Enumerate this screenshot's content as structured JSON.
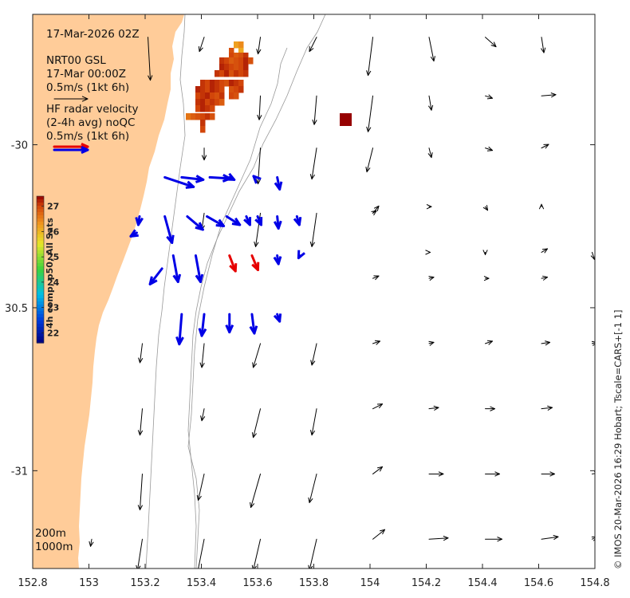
{
  "header": {
    "timestamp": "17-Mar-2026 02Z",
    "model_line1": "NRT00 GSL",
    "model_line2": "17-Mar 00:00Z",
    "model_scale": "0.5m/s (1kt 6h)",
    "radar_line1": "HF radar velocity",
    "radar_line2": "(2-4h avg) noQC",
    "radar_scale": "0.5m/s (1kt 6h)"
  },
  "depth_legend": {
    "contour_1": "200m",
    "contour_2": "1000m"
  },
  "credit": "© IMOS 20-Mar-2026 16:29 Hobart; Tscale=CARS+[-1 1]",
  "colorbar": {
    "label": "4h comp, p50, All Sats",
    "ticks": [
      "22",
      "23",
      "24",
      "25",
      "26",
      "27"
    ],
    "range": [
      21.6,
      27.4
    ]
  },
  "colors": {
    "land": "#ffcc99",
    "radar_arrows": "#0000e6",
    "radar_highlight": "#e60000",
    "model_arrows": "#000000",
    "bathymetry": "#999999"
  },
  "axes": {
    "x_ticks": [
      "152.8",
      "153",
      "153.2",
      "153.4",
      "153.6",
      "153.8",
      "154",
      "154.2",
      "154.4",
      "154.6",
      "154.8"
    ],
    "y_ticks": [
      "-30",
      "30.5",
      "-31"
    ],
    "xlim": [
      152.8,
      154.8
    ],
    "ylim": [
      -31.3,
      -29.6
    ]
  },
  "model_arrows": [
    {
      "lon": 153.21,
      "lat": -29.67,
      "u": 0.02,
      "v": -0.36
    },
    {
      "lon": 153.41,
      "lat": -29.67,
      "u": -0.04,
      "v": -0.12
    },
    {
      "lon": 153.61,
      "lat": -29.67,
      "u": -0.02,
      "v": -0.14
    },
    {
      "lon": 153.81,
      "lat": -29.67,
      "u": -0.06,
      "v": -0.12
    },
    {
      "lon": 154.01,
      "lat": -29.67,
      "u": -0.04,
      "v": -0.32
    },
    {
      "lon": 154.21,
      "lat": -29.67,
      "u": 0.04,
      "v": -0.2
    },
    {
      "lon": 154.41,
      "lat": -29.67,
      "u": 0.09,
      "v": -0.08
    },
    {
      "lon": 154.61,
      "lat": -29.67,
      "u": 0.02,
      "v": -0.13
    },
    {
      "lon": 153.61,
      "lat": -29.85,
      "u": -0.01,
      "v": -0.2
    },
    {
      "lon": 153.81,
      "lat": -29.85,
      "u": -0.02,
      "v": -0.24
    },
    {
      "lon": 154.01,
      "lat": -29.85,
      "u": -0.04,
      "v": -0.3
    },
    {
      "lon": 154.21,
      "lat": -29.85,
      "u": 0.02,
      "v": -0.12
    },
    {
      "lon": 154.41,
      "lat": -29.85,
      "u": 0.06,
      "v": -0.02
    },
    {
      "lon": 154.61,
      "lat": -29.85,
      "u": 0.12,
      "v": 0.01
    },
    {
      "lon": 153.41,
      "lat": -30.01,
      "u": 0.0,
      "v": -0.1
    },
    {
      "lon": 153.61,
      "lat": -30.01,
      "u": -0.02,
      "v": -0.3
    },
    {
      "lon": 153.81,
      "lat": -30.01,
      "u": -0.04,
      "v": -0.26
    },
    {
      "lon": 154.01,
      "lat": -30.01,
      "u": -0.05,
      "v": -0.2
    },
    {
      "lon": 154.21,
      "lat": -30.01,
      "u": 0.02,
      "v": -0.08
    },
    {
      "lon": 154.41,
      "lat": -30.01,
      "u": 0.06,
      "v": -0.02
    },
    {
      "lon": 154.61,
      "lat": -30.01,
      "u": 0.06,
      "v": 0.03
    },
    {
      "lon": 154.21,
      "lat": -30.19,
      "u": 0.02,
      "v": 0.0
    },
    {
      "lon": 154.41,
      "lat": -30.19,
      "u": 0.02,
      "v": -0.03
    },
    {
      "lon": 154.61,
      "lat": -30.19,
      "u": 0.0,
      "v": 0.02
    },
    {
      "lon": 154.01,
      "lat": -30.21,
      "u": 0.05,
      "v": 0.06
    },
    {
      "lon": 154.21,
      "lat": -30.33,
      "u": 0.01,
      "v": 0.0
    },
    {
      "lon": 154.41,
      "lat": -30.33,
      "u": 0.0,
      "v": -0.02
    },
    {
      "lon": 154.61,
      "lat": -30.33,
      "u": 0.05,
      "v": 0.03
    },
    {
      "lon": 154.79,
      "lat": -30.33,
      "u": 0.02,
      "v": -0.06
    },
    {
      "lon": 154.01,
      "lat": -30.41,
      "u": 0.05,
      "v": 0.02
    },
    {
      "lon": 154.21,
      "lat": -30.41,
      "u": 0.04,
      "v": 0.01
    },
    {
      "lon": 154.41,
      "lat": -30.41,
      "u": 0.03,
      "v": 0.0
    },
    {
      "lon": 154.61,
      "lat": -30.41,
      "u": 0.05,
      "v": 0.01
    },
    {
      "lon": 154.01,
      "lat": -30.61,
      "u": 0.06,
      "v": 0.02
    },
    {
      "lon": 154.21,
      "lat": -30.61,
      "u": 0.04,
      "v": 0.01
    },
    {
      "lon": 154.41,
      "lat": -30.61,
      "u": 0.06,
      "v": 0.02
    },
    {
      "lon": 154.61,
      "lat": -30.61,
      "u": 0.07,
      "v": 0.01
    },
    {
      "lon": 154.79,
      "lat": -30.61,
      "u": 0.04,
      "v": 0.01
    },
    {
      "lon": 153.19,
      "lat": -30.61,
      "u": -0.02,
      "v": -0.16
    },
    {
      "lon": 153.41,
      "lat": -30.61,
      "u": -0.02,
      "v": -0.2
    },
    {
      "lon": 153.61,
      "lat": -30.61,
      "u": -0.06,
      "v": -0.2
    },
    {
      "lon": 153.81,
      "lat": -30.61,
      "u": -0.04,
      "v": -0.18
    },
    {
      "lon": 154.01,
      "lat": -30.81,
      "u": 0.08,
      "v": 0.04
    },
    {
      "lon": 154.21,
      "lat": -30.81,
      "u": 0.08,
      "v": 0.01
    },
    {
      "lon": 154.41,
      "lat": -30.81,
      "u": 0.08,
      "v": 0.0
    },
    {
      "lon": 154.61,
      "lat": -30.81,
      "u": 0.09,
      "v": 0.01
    },
    {
      "lon": 153.19,
      "lat": -30.81,
      "u": -0.02,
      "v": -0.22
    },
    {
      "lon": 153.41,
      "lat": -30.81,
      "u": -0.02,
      "v": -0.1
    },
    {
      "lon": 153.61,
      "lat": -30.81,
      "u": -0.06,
      "v": -0.24
    },
    {
      "lon": 153.81,
      "lat": -30.81,
      "u": -0.04,
      "v": -0.22
    },
    {
      "lon": 153.19,
      "lat": -31.01,
      "u": -0.02,
      "v": -0.3
    },
    {
      "lon": 153.41,
      "lat": -31.01,
      "u": -0.05,
      "v": -0.22
    },
    {
      "lon": 153.61,
      "lat": -31.01,
      "u": -0.08,
      "v": -0.28
    },
    {
      "lon": 153.81,
      "lat": -31.01,
      "u": -0.06,
      "v": -0.24
    },
    {
      "lon": 154.01,
      "lat": -31.01,
      "u": 0.08,
      "v": 0.06
    },
    {
      "lon": 154.21,
      "lat": -31.01,
      "u": 0.12,
      "v": 0.0
    },
    {
      "lon": 154.41,
      "lat": -31.01,
      "u": 0.12,
      "v": 0.0
    },
    {
      "lon": 154.61,
      "lat": -31.01,
      "u": 0.11,
      "v": 0.0
    },
    {
      "lon": 154.79,
      "lat": -31.01,
      "u": 0.06,
      "v": 0.01
    },
    {
      "lon": 153.19,
      "lat": -31.21,
      "u": -0.04,
      "v": -0.26
    },
    {
      "lon": 153.41,
      "lat": -31.21,
      "u": -0.06,
      "v": -0.3
    },
    {
      "lon": 153.61,
      "lat": -31.21,
      "u": -0.06,
      "v": -0.26
    },
    {
      "lon": 153.81,
      "lat": -31.21,
      "u": -0.06,
      "v": -0.26
    },
    {
      "lon": 154.01,
      "lat": -31.21,
      "u": 0.1,
      "v": 0.08
    },
    {
      "lon": 154.21,
      "lat": -31.21,
      "u": 0.16,
      "v": 0.01
    },
    {
      "lon": 154.41,
      "lat": -31.21,
      "u": 0.14,
      "v": 0.0
    },
    {
      "lon": 154.61,
      "lat": -31.21,
      "u": 0.14,
      "v": 0.02
    },
    {
      "lon": 154.79,
      "lat": -31.21,
      "u": 0.04,
      "v": 0.02
    },
    {
      "lon": 153.41,
      "lat": -30.21,
      "u": -0.02,
      "v": -0.14
    },
    {
      "lon": 153.61,
      "lat": -30.21,
      "u": -0.04,
      "v": -0.28
    },
    {
      "lon": 153.81,
      "lat": -30.21,
      "u": -0.04,
      "v": -0.28
    },
    {
      "lon": 154.01,
      "lat": -30.21,
      "u": 0.03,
      "v": 0.02
    },
    {
      "lon": 153.01,
      "lat": -31.21,
      "u": -0.01,
      "v": -0.06
    }
  ],
  "radar_arrows": [
    {
      "lon": 153.27,
      "lat": -30.1,
      "u": 0.24,
      "v": -0.08,
      "hl": false
    },
    {
      "lon": 153.33,
      "lat": -30.1,
      "u": 0.18,
      "v": -0.02,
      "hl": false
    },
    {
      "lon": 153.43,
      "lat": -30.1,
      "u": 0.17,
      "v": -0.01,
      "hl": false
    },
    {
      "lon": 153.5,
      "lat": -30.1,
      "u": 0.04,
      "v": -0.02,
      "hl": false
    },
    {
      "lon": 153.59,
      "lat": -30.1,
      "u": -0.01,
      "v": 0.01,
      "hl": false
    },
    {
      "lon": 153.67,
      "lat": -30.1,
      "u": 0.02,
      "v": -0.1,
      "hl": false
    },
    {
      "lon": 153.18,
      "lat": -30.22,
      "u": -0.01,
      "v": -0.07,
      "hl": false
    },
    {
      "lon": 153.27,
      "lat": -30.22,
      "u": 0.06,
      "v": -0.22,
      "hl": false
    },
    {
      "lon": 153.35,
      "lat": -30.22,
      "u": 0.13,
      "v": -0.11,
      "hl": false
    },
    {
      "lon": 153.42,
      "lat": -30.22,
      "u": 0.14,
      "v": -0.08,
      "hl": false
    },
    {
      "lon": 153.49,
      "lat": -30.22,
      "u": 0.11,
      "v": -0.07,
      "hl": false
    },
    {
      "lon": 153.56,
      "lat": -30.22,
      "u": 0.03,
      "v": -0.07,
      "hl": false
    },
    {
      "lon": 153.6,
      "lat": -30.22,
      "u": 0.03,
      "v": -0.07,
      "hl": false
    },
    {
      "lon": 153.67,
      "lat": -30.22,
      "u": 0.01,
      "v": -0.1,
      "hl": false
    },
    {
      "lon": 153.74,
      "lat": -30.22,
      "u": 0.02,
      "v": -0.07,
      "hl": false
    },
    {
      "lon": 153.17,
      "lat": -30.27,
      "u": -0.05,
      "v": -0.03,
      "hl": false
    },
    {
      "lon": 153.3,
      "lat": -30.34,
      "u": 0.04,
      "v": -0.22,
      "hl": false
    },
    {
      "lon": 153.38,
      "lat": -30.34,
      "u": 0.04,
      "v": -0.22,
      "hl": false
    },
    {
      "lon": 153.5,
      "lat": -30.34,
      "u": 0.05,
      "v": -0.13,
      "hl": true
    },
    {
      "lon": 153.58,
      "lat": -30.34,
      "u": 0.05,
      "v": -0.12,
      "hl": true
    },
    {
      "lon": 153.67,
      "lat": -30.34,
      "u": 0.01,
      "v": -0.07,
      "hl": false
    },
    {
      "lon": 153.75,
      "lat": -30.34,
      "u": -0.01,
      "v": -0.02,
      "hl": false
    },
    {
      "lon": 153.26,
      "lat": -30.38,
      "u": -0.1,
      "v": -0.13,
      "hl": false
    },
    {
      "lon": 153.33,
      "lat": -30.52,
      "u": -0.02,
      "v": -0.25,
      "hl": false
    },
    {
      "lon": 153.41,
      "lat": -30.52,
      "u": -0.02,
      "v": -0.18,
      "hl": false
    },
    {
      "lon": 153.5,
      "lat": -30.52,
      "u": 0.0,
      "v": -0.15,
      "hl": false
    },
    {
      "lon": 153.58,
      "lat": -30.52,
      "u": 0.02,
      "v": -0.16,
      "hl": false
    },
    {
      "lon": 153.67,
      "lat": -30.52,
      "u": 0.02,
      "v": -0.06,
      "hl": false
    }
  ]
}
